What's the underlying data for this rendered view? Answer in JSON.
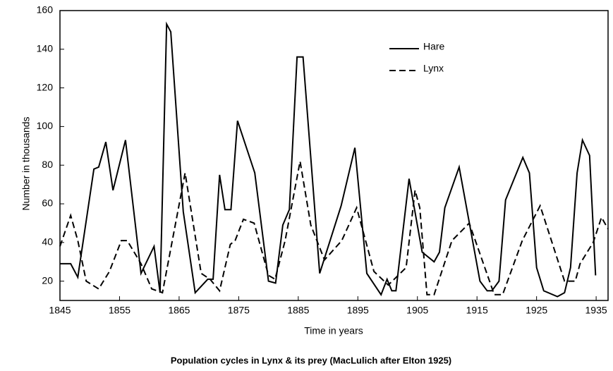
{
  "chart_data": {
    "type": "line",
    "caption": "Population cycles in Lynx & its prey  (MacLulich after Elton 1925)",
    "xlabel": "Time in years",
    "ylabel": "Number in thousands",
    "xlim": [
      1845,
      1937
    ],
    "xticks": [
      1845,
      1855,
      1865,
      1875,
      1885,
      1895,
      1905,
      1915,
      1925,
      1935
    ],
    "ylim": [
      10,
      160
    ],
    "yticks": [
      20,
      40,
      60,
      80,
      100,
      120,
      140,
      160
    ],
    "legend": "upper right",
    "series": [
      {
        "name": "Hare",
        "color": "#000000",
        "linestyle": "solid",
        "x": [
          1845,
          1846.8,
          1848,
          1850.7,
          1851.5,
          1852.7,
          1853.9,
          1856,
          1858.6,
          1860.8,
          1861.8,
          1862.9,
          1863.6,
          1865.7,
          1867.7,
          1869.8,
          1870.7,
          1871.8,
          1872.7,
          1873.7,
          1874.8,
          1877.7,
          1880,
          1881.2,
          1882.4,
          1883.5,
          1884.8,
          1885.8,
          1888.6,
          1892.2,
          1894.5,
          1896.5,
          1898.9,
          1899.9,
          1900.7,
          1901.4,
          1903.6,
          1905.8,
          1907.8,
          1908.7,
          1909.6,
          1912,
          1915.5,
          1916.7,
          1917.5,
          1918.7,
          1919.8,
          1922.7,
          1923.8,
          1925,
          1926.2,
          1928.5,
          1929.7,
          1930.7,
          1931.8,
          1932.7,
          1933.9,
          1934.9
        ],
        "values": [
          29,
          29,
          22,
          78,
          79,
          92,
          67,
          93,
          24,
          38,
          14,
          153,
          149,
          56,
          14,
          21,
          21,
          75,
          57,
          57,
          103,
          76,
          20,
          19,
          49,
          57,
          136,
          136,
          24,
          59,
          89,
          24,
          13,
          21,
          15,
          15,
          73,
          35,
          30,
          35,
          58,
          79,
          20,
          15,
          15,
          20,
          62,
          84,
          76,
          27,
          15,
          12,
          14,
          27,
          76,
          93,
          85,
          23
        ]
      },
      {
        "name": "Lynx",
        "color": "#000000",
        "linestyle": "dashed",
        "x": [
          1845,
          1846.8,
          1848,
          1849.4,
          1851.5,
          1853.3,
          1855.3,
          1856.3,
          1858.6,
          1860.4,
          1862.2,
          1866,
          1868.7,
          1870.2,
          1871.8,
          1873.6,
          1874.4,
          1875.8,
          1877.6,
          1880,
          1881.1,
          1882.8,
          1885.3,
          1887.1,
          1889.4,
          1892.3,
          1894.8,
          1897.7,
          1900.1,
          1903.1,
          1904.6,
          1905.4,
          1906.6,
          1907.8,
          1910.8,
          1913.7,
          1917.9,
          1919.3,
          1922.6,
          1925.6,
          1929.7,
          1931.5,
          1932.3,
          1934.5,
          1935.9,
          1937
        ],
        "values": [
          38,
          54,
          41,
          20,
          16,
          25,
          41,
          41,
          29,
          16,
          14,
          76,
          24,
          21,
          15,
          39,
          41,
          52,
          50,
          23,
          21,
          41,
          82,
          49,
          31,
          41,
          58,
          25,
          18,
          27,
          67,
          58,
          13,
          13,
          41,
          50,
          13,
          13,
          41,
          59,
          20,
          20,
          29,
          40,
          53,
          47
        ]
      }
    ]
  }
}
